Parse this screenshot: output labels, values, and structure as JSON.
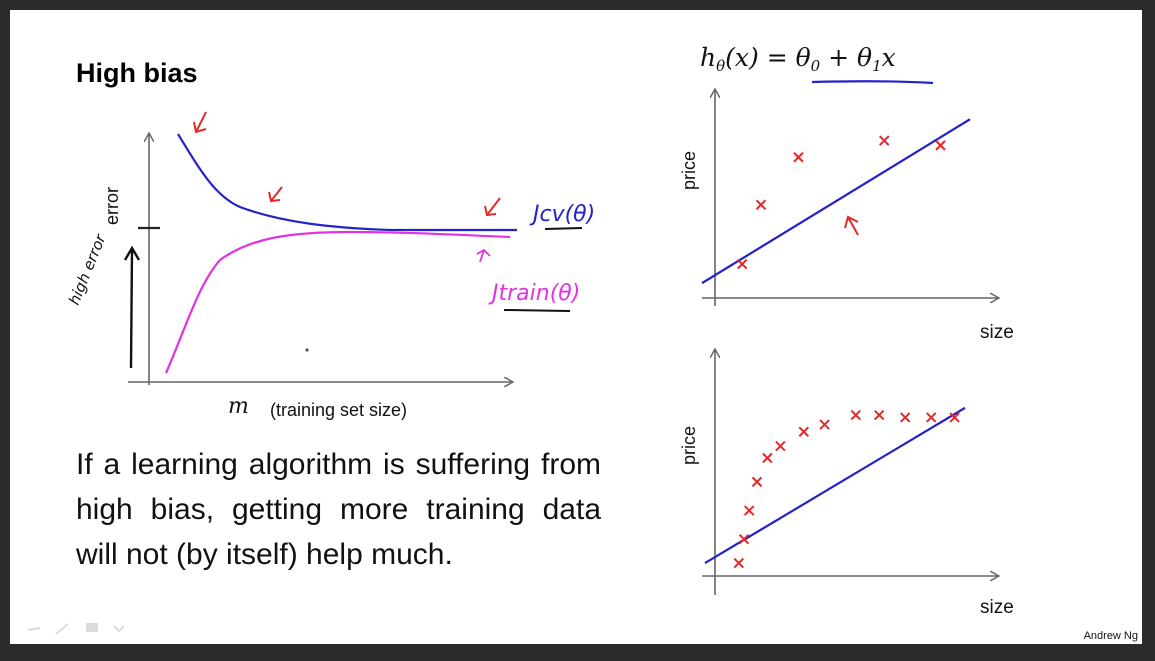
{
  "slide": {
    "title": "High bias",
    "body_text": "If a learning algorithm is suffering from high bias, getting more training data will not (by itself) help much.",
    "footer": "Andrew Ng"
  },
  "learning_curve": {
    "ylabel": "error",
    "xlabel_var": "m",
    "xlabel_text": "(training set size)",
    "annotations": [
      "Jcv(θ)",
      "Jtrain(θ)",
      "high error"
    ]
  },
  "hypothesis": {
    "h": "h",
    "sub": "θ",
    "rest": "(x) = θ",
    "sub0": "0",
    "plus": " + θ",
    "sub1": "1",
    "x": "x"
  },
  "plot_top": {
    "ylabel": "price",
    "xlabel": "size"
  },
  "plot_bottom": {
    "ylabel": "price",
    "xlabel": "size"
  },
  "colors": {
    "blue_line": "#2323c8",
    "magenta": "#e233e2",
    "red": "#e22a2a"
  },
  "chart_data": [
    {
      "type": "line",
      "title": "High bias",
      "xlabel": "m (training set size)",
      "ylabel": "error",
      "series": [
        {
          "name": "Jcv(θ)",
          "x": [
            1,
            2,
            3,
            4,
            5,
            6,
            7,
            8,
            9,
            10
          ],
          "values": [
            9.0,
            6.4,
            5.4,
            5.0,
            4.85,
            4.75,
            4.7,
            4.7,
            4.7,
            4.7
          ]
        },
        {
          "name": "Jtrain(θ)",
          "x": [
            1,
            2,
            3,
            4,
            5,
            6,
            7,
            8,
            9,
            10
          ],
          "values": [
            0.3,
            2.6,
            3.8,
            4.3,
            4.5,
            4.55,
            4.55,
            4.55,
            4.5,
            4.5
          ]
        }
      ]
    },
    {
      "type": "scatter",
      "xlabel": "size",
      "ylabel": "price",
      "points": [
        [
          1.5,
          1.3
        ],
        [
          2.2,
          3.8
        ],
        [
          3.6,
          5.8
        ],
        [
          6.8,
          6.5
        ],
        [
          8.9,
          6.3
        ]
      ],
      "fit_line": [
        [
          0,
          0.5
        ],
        [
          10,
          7.4
        ]
      ]
    },
    {
      "type": "scatter",
      "xlabel": "size",
      "ylabel": "price",
      "points": [
        [
          1.3,
          0.5
        ],
        [
          1.5,
          1.5
        ],
        [
          1.7,
          2.7
        ],
        [
          2.0,
          3.9
        ],
        [
          2.4,
          4.9
        ],
        [
          2.9,
          5.4
        ],
        [
          3.8,
          6.0
        ],
        [
          4.6,
          6.3
        ],
        [
          5.8,
          6.7
        ],
        [
          6.7,
          6.7
        ],
        [
          7.7,
          6.6
        ],
        [
          8.7,
          6.6
        ],
        [
          9.6,
          6.6
        ]
      ],
      "fit_line": [
        [
          0,
          0.5
        ],
        [
          10,
          7.0
        ]
      ]
    }
  ]
}
